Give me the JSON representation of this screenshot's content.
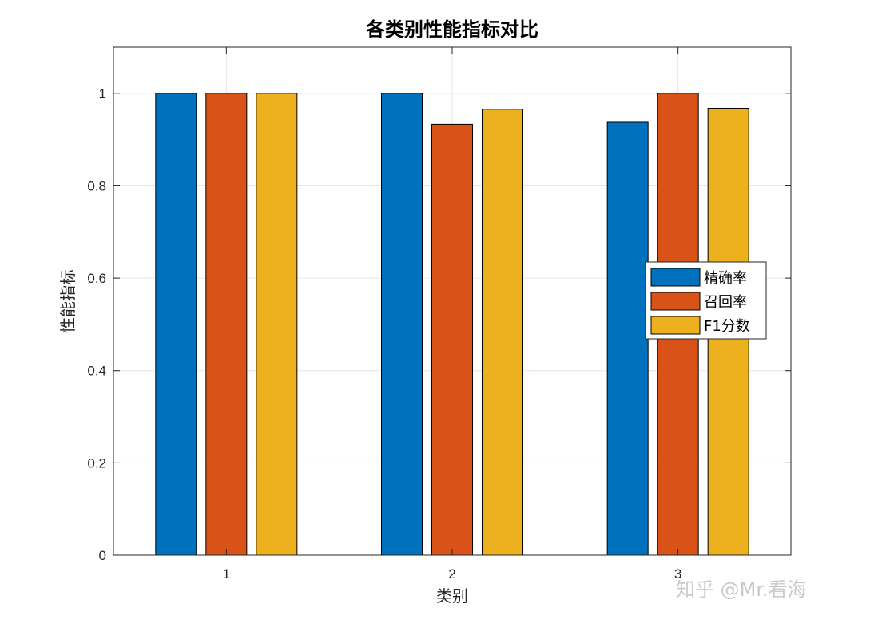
{
  "chart_data": {
    "type": "bar",
    "title": "各类别性能指标对比",
    "xlabel": "类别",
    "ylabel": "性能指标",
    "categories": [
      "1",
      "2",
      "3"
    ],
    "series": [
      {
        "name": "精确率",
        "color": "#0072BD",
        "values": [
          1.0,
          1.0,
          0.9375
        ]
      },
      {
        "name": "召回率",
        "color": "#D95319",
        "values": [
          1.0,
          0.9333,
          1.0
        ]
      },
      {
        "name": "F1分数",
        "color": "#EDB120",
        "values": [
          1.0,
          0.9655,
          0.9677
        ]
      }
    ],
    "ylim": [
      0,
      1.1
    ],
    "yticks": [
      0,
      0.2,
      0.4,
      0.6,
      0.8,
      1
    ],
    "ytick_labels": [
      "0",
      "0.2",
      "0.4",
      "0.6",
      "0.8",
      "1"
    ],
    "grid": true,
    "legend_position": "right"
  },
  "watermark": "知乎 @Mr.看海"
}
